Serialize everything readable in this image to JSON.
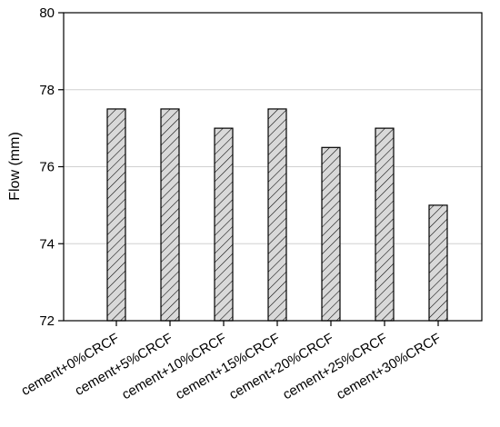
{
  "chart_data": {
    "type": "bar",
    "categories": [
      "cement+0%CRCF",
      "cement+5%CRCF",
      "cement+10%CRCF",
      "cement+15%CRCF",
      "cement+20%CRCF",
      "cement+25%CRCF",
      "cement+30%CRCF"
    ],
    "values": [
      77.5,
      77.5,
      77.0,
      77.5,
      76.5,
      77.0,
      75.0
    ],
    "title": "",
    "xlabel": "",
    "ylabel": "Flow (mm)",
    "ylim": [
      72,
      80
    ],
    "yticks": [
      "72",
      "74",
      "76",
      "78",
      "80"
    ],
    "grid": "horizontal",
    "bar_style": "diagonal hatch, light gray fill, black outline",
    "bar_fill_color": "#d9d9d9",
    "edge_color": "#000000",
    "grid_color": "#d0d0d0"
  }
}
